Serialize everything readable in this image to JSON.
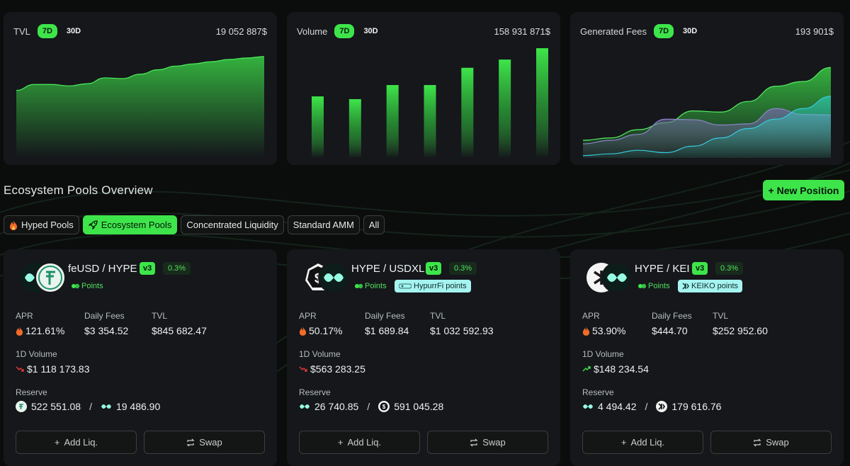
{
  "stats": [
    {
      "label": "TVL",
      "periods": [
        "7D",
        "30D"
      ],
      "active": "7D",
      "value": "19 052 887$"
    },
    {
      "label": "Volume",
      "periods": [
        "7D",
        "30D"
      ],
      "active": "7D",
      "value": "158 931 871$"
    },
    {
      "label": "Generated Fees",
      "periods": [
        "7D",
        "30D"
      ],
      "active": "7D",
      "value": "193 901$"
    }
  ],
  "section": {
    "title": "Ecosystem Pools Overview",
    "new_position": "+ New Position"
  },
  "filters": [
    {
      "label": "Hyped Pools",
      "icon": "fire-icon",
      "active": false
    },
    {
      "label": "Ecosystem Pools",
      "icon": "rocket-icon",
      "active": true
    },
    {
      "label": "Concentrated Liquidity",
      "active": false
    },
    {
      "label": "Standard AMM",
      "active": false
    },
    {
      "label": "All",
      "active": false
    }
  ],
  "labels": {
    "apr": "APR",
    "daily_fees": "Daily Fees",
    "tvl": "TVL",
    "volume_1d": "1D Volume",
    "reserve": "Reserve",
    "add_liq": "Add Liq.",
    "swap": "Swap",
    "points": "Points",
    "slash": "/"
  },
  "pools": [
    {
      "name": "feUSD / HYPE",
      "version": "v3",
      "fee": "0.3%",
      "partner": "",
      "apr": "121.61%",
      "daily_fees": "$3 354.52",
      "tvl": "$845 682.47",
      "volume": "$1 118 173.83",
      "volume_trend": "down",
      "reserve_a": "522 551.08",
      "reserve_b": "19 486.90"
    },
    {
      "name": "HYPE / USDXL",
      "version": "v3",
      "fee": "0.3%",
      "partner": "HypurrFi points",
      "apr": "50.17%",
      "daily_fees": "$1 689.84",
      "tvl": "$1 032 592.93",
      "volume": "$563 283.25",
      "volume_trend": "down",
      "reserve_a": "26 740.85",
      "reserve_b": "591 045.28"
    },
    {
      "name": "HYPE / KEI",
      "version": "v3",
      "fee": "0.3%",
      "partner": "KEIKO points",
      "apr": "53.90%",
      "daily_fees": "$444.70",
      "tvl": "$252 952.60",
      "volume": "$148 234.54",
      "volume_trend": "up",
      "reserve_a": "4 494.42",
      "reserve_b": "179 616.76"
    }
  ],
  "colors": {
    "accent": "#3ee54a",
    "card": "#15171b",
    "partner": "#a6f4f0",
    "down": "#e53b3b",
    "up": "#3ee54a",
    "teal": "#2fd6c8"
  },
  "chart_data": [
    {
      "type": "area",
      "x": [
        1,
        2,
        3,
        4,
        5,
        6,
        7,
        8,
        9,
        10,
        11,
        12,
        13,
        14,
        15
      ],
      "values": [
        9.2,
        10.0,
        10.0,
        9.8,
        10.1,
        10.9,
        10.8,
        11.4,
        12.0,
        12.5,
        12.8,
        13.1,
        13.4,
        13.6,
        13.8
      ],
      "ylim": [
        0,
        16
      ],
      "grid": false
    },
    {
      "type": "bar",
      "x": [
        1,
        2,
        3,
        4,
        5,
        6,
        7
      ],
      "values": [
        15.7,
        15.0,
        18.6,
        18.6,
        23.0,
        25.1,
        28.0
      ],
      "ylim": [
        0,
        30
      ],
      "grid": false
    },
    {
      "type": "area",
      "x": [
        1,
        2,
        3,
        4,
        5,
        6,
        7,
        8,
        9,
        10
      ],
      "series": [
        {
          "values": [
            3.0,
            3.4,
            4.8,
            6.0,
            8.0,
            7.8,
            9.6,
            12.2,
            13.0,
            15.4
          ]
        },
        {
          "values": [
            2.4,
            3.0,
            4.0,
            6.6,
            6.5,
            5.6,
            5.8,
            8.4,
            7.4,
            7.3
          ]
        },
        {
          "values": [
            0.4,
            0.7,
            1.3,
            0.9,
            2.0,
            3.4,
            5.0,
            6.6,
            8.4,
            10.5
          ]
        }
      ],
      "ylim": [
        0,
        20
      ],
      "grid": false
    }
  ]
}
